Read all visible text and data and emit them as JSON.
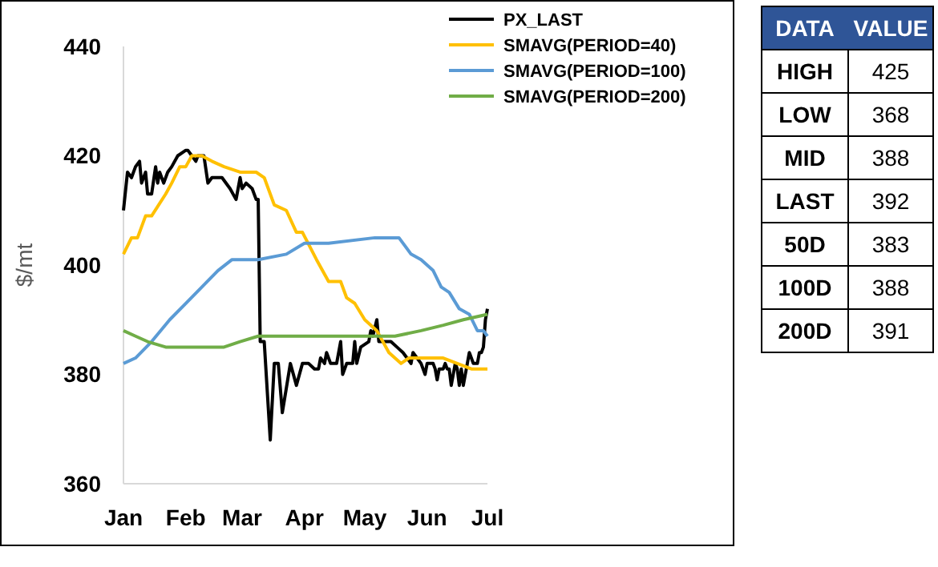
{
  "chart_data": [
    {
      "type": "line",
      "ylabel": "$/mt",
      "xlim": [
        "--01-01",
        "--07-01"
      ],
      "ylim": [
        360,
        440
      ],
      "yticks": [
        360,
        380,
        400,
        420,
        440
      ],
      "xticks": [
        {
          "value": "--01-01",
          "label": "Jan"
        },
        {
          "value": "--02-01",
          "label": "Feb"
        },
        {
          "value": "--03-01",
          "label": "Mar"
        },
        {
          "value": "--04-01",
          "label": "Apr"
        },
        {
          "value": "--05-01",
          "label": "May"
        },
        {
          "value": "--06-01",
          "label": "Jun"
        },
        {
          "value": "--07-01",
          "label": "Jul"
        }
      ],
      "legend": "top right",
      "marker": "none",
      "series": [
        {
          "name": "PX_LAST",
          "color": "#000000",
          "x": [
            "--01-01",
            "--01-03",
            "--01-05",
            "--01-07",
            "--01-09",
            "--01-10",
            "--01-12",
            "--01-13",
            "--01-15",
            "--01-17",
            "--01-18",
            "--01-19",
            "--01-21",
            "--01-23",
            "--01-25",
            "--01-28",
            "--02-01",
            "--02-02",
            "--02-04",
            "--02-06",
            "--02-07",
            "--02-10",
            "--02-12",
            "--02-14",
            "--02-19",
            "--02-23",
            "--02-26",
            "--02-28",
            "--03-01",
            "--03-03",
            "--03-06",
            "--03-08",
            "--03-09",
            "--03-10",
            "--03-12",
            "--03-15",
            "--03-17",
            "--03-19",
            "--03-21",
            "--03-25",
            "--03-28",
            "--03-31",
            "--04-03",
            "--04-06",
            "--04-08",
            "--04-09",
            "--04-11",
            "--04-12",
            "--04-14",
            "--04-15",
            "--04-17",
            "--04-19",
            "--04-20",
            "--04-22",
            "--04-25",
            "--04-26",
            "--04-27",
            "--04-29",
            "--05-03",
            "--05-04",
            "--05-05",
            "--05-07",
            "--05-08",
            "--05-11",
            "--05-14",
            "--05-17",
            "--05-20",
            "--05-24",
            "--05-25",
            "--05-29",
            "--05-31",
            "--06-01",
            "--06-02",
            "--06-04",
            "--06-05",
            "--06-06",
            "--06-07",
            "--06-09",
            "--06-10",
            "--06-11",
            "--06-12",
            "--06-13",
            "--06-14",
            "--06-15",
            "--06-16",
            "--06-17",
            "--06-18",
            "--06-19",
            "--06-20",
            "--06-21",
            "--06-22",
            "--06-23",
            "--06-24",
            "--06-25",
            "--06-26",
            "--06-27",
            "--06-28",
            "--06-29",
            "--06-30",
            "--07-01"
          ],
          "values": [
            410,
            417,
            416,
            418,
            419,
            415,
            417,
            413,
            413,
            418,
            415,
            417,
            415,
            417,
            418,
            420,
            421,
            421,
            420,
            419,
            420,
            420,
            415,
            416,
            416,
            414,
            412,
            416,
            414,
            415,
            414,
            412,
            412,
            386,
            386,
            368,
            382,
            382,
            373,
            382,
            378,
            382,
            382,
            381,
            381,
            383,
            382,
            384,
            382,
            382,
            382,
            386,
            380,
            382,
            382,
            386,
            382,
            385,
            386,
            388,
            387,
            390,
            386,
            386,
            386,
            385,
            384,
            382,
            384,
            382,
            380,
            382,
            382,
            382,
            381,
            379,
            381,
            381,
            382,
            381,
            381,
            378,
            380,
            382,
            381,
            378,
            381,
            378,
            380,
            382,
            384,
            383,
            382,
            382,
            382,
            384,
            384,
            385,
            390,
            392
          ]
        },
        {
          "name": "SMAVG(PERIOD=40)",
          "color": "#ffc000",
          "x": [
            "--01-01",
            "--01-05",
            "--01-08",
            "--01-12",
            "--01-15",
            "--01-22",
            "--01-25",
            "--01-29",
            "--02-01",
            "--02-04",
            "--02-09",
            "--02-14",
            "--02-20",
            "--02-28",
            "--03-08",
            "--03-12",
            "--03-17",
            "--03-23",
            "--03-28",
            "--03-31",
            "--04-07",
            "--04-13",
            "--04-19",
            "--04-22",
            "--04-26",
            "--05-01",
            "--05-07",
            "--05-13",
            "--05-19",
            "--05-23",
            "--05-29",
            "--06-09",
            "--06-16",
            "--06-23",
            "--06-26",
            "--07-01"
          ],
          "values": [
            402,
            405,
            405,
            409,
            409,
            413,
            415,
            418,
            418,
            420,
            420,
            419,
            418,
            417,
            417,
            416,
            411,
            410,
            406,
            406,
            401,
            397,
            397,
            394,
            393,
            390,
            388,
            384,
            382,
            383,
            383,
            383,
            382,
            381,
            381,
            381
          ]
        },
        {
          "name": "SMAVG(PERIOD=100)",
          "color": "#5b9bd5",
          "x": [
            "--01-01",
            "--01-07",
            "--01-15",
            "--01-24",
            "--02-01",
            "--02-09",
            "--02-17",
            "--02-24",
            "--03-09",
            "--03-23",
            "--04-01",
            "--04-13",
            "--05-06",
            "--05-18",
            "--05-24",
            "--05-29",
            "--06-04",
            "--06-08",
            "--06-12",
            "--06-17",
            "--06-22",
            "--06-26",
            "--06-29",
            "--07-01"
          ],
          "values": [
            382,
            383,
            386,
            390,
            393,
            396,
            399,
            401,
            401,
            402,
            404,
            404,
            405,
            405,
            402,
            401,
            399,
            396,
            395,
            392,
            391,
            388,
            388,
            387
          ]
        },
        {
          "name": "SMAVG(PERIOD=200)",
          "color": "#70ad47",
          "x": [
            "--01-01",
            "--01-07",
            "--01-13",
            "--01-22",
            "--02-01",
            "--02-11",
            "--02-20",
            "--02-28",
            "--03-09",
            "--03-23",
            "--03-29",
            "--04-29",
            "--05-16",
            "--05-29",
            "--06-09",
            "--06-19",
            "--07-01"
          ],
          "values": [
            388,
            387,
            386,
            385,
            385,
            385,
            385,
            386,
            387,
            387,
            387,
            387,
            387,
            388,
            389,
            390,
            391
          ]
        }
      ]
    },
    {
      "type": "other",
      "xlabel": "DATA",
      "ylabel": "VALUE",
      "categories": [
        "HIGH",
        "LOW",
        "MID",
        "LAST",
        "50D",
        "100D",
        "200D"
      ],
      "values": [
        425,
        368,
        388,
        392,
        383,
        388,
        391
      ],
      "data_labels": true
    }
  ]
}
